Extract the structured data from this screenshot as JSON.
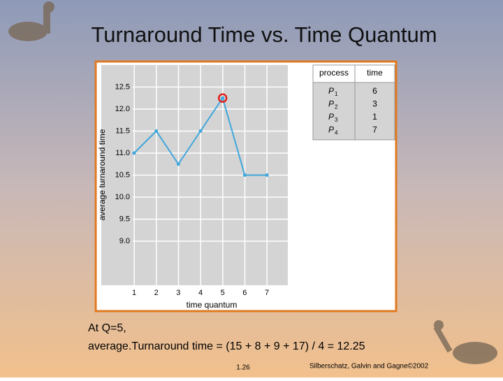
{
  "chart_data": {
    "type": "line",
    "title": "Turnaround Time vs. Time Quantum",
    "x_label": "time quantum",
    "y_label": "average turnaround time",
    "categories": [
      "1",
      "2",
      "3",
      "4",
      "5",
      "6",
      "7"
    ],
    "values": [
      11.0,
      11.5,
      10.75,
      11.5,
      12.25,
      10.5,
      10.5
    ],
    "color": "#3fa7dc",
    "highlight_index": 4,
    "highlight_color": "#e0201c",
    "ylim": [
      8,
      13
    ],
    "yticks": [
      {
        "value": 9,
        "label": "9.0"
      },
      9.5,
      {
        "value": 10,
        "label": "10.0"
      },
      10.5,
      {
        "value": 11,
        "label": "11.0"
      },
      11.5,
      {
        "value": 12,
        "label": "12.0"
      },
      12.5
    ],
    "grid": true
  },
  "table": {
    "header": [
      "process",
      "time"
    ],
    "rows": [
      {
        "process": "P",
        "sub": "1",
        "time": 6
      },
      {
        "process": "P",
        "sub": "2",
        "time": 3
      },
      {
        "process": "P",
        "sub": "3",
        "time": 1
      },
      {
        "process": "P",
        "sub": "4",
        "time": 7
      }
    ]
  },
  "note": [
    "At Q=5,",
    "average.Turnaround time =  (15 + 8 + 9 + 17) / 4 = 12.25"
  ],
  "footer": {
    "page": "1.26",
    "credit": "Silberschatz, Galvin and Gagne©2002"
  }
}
